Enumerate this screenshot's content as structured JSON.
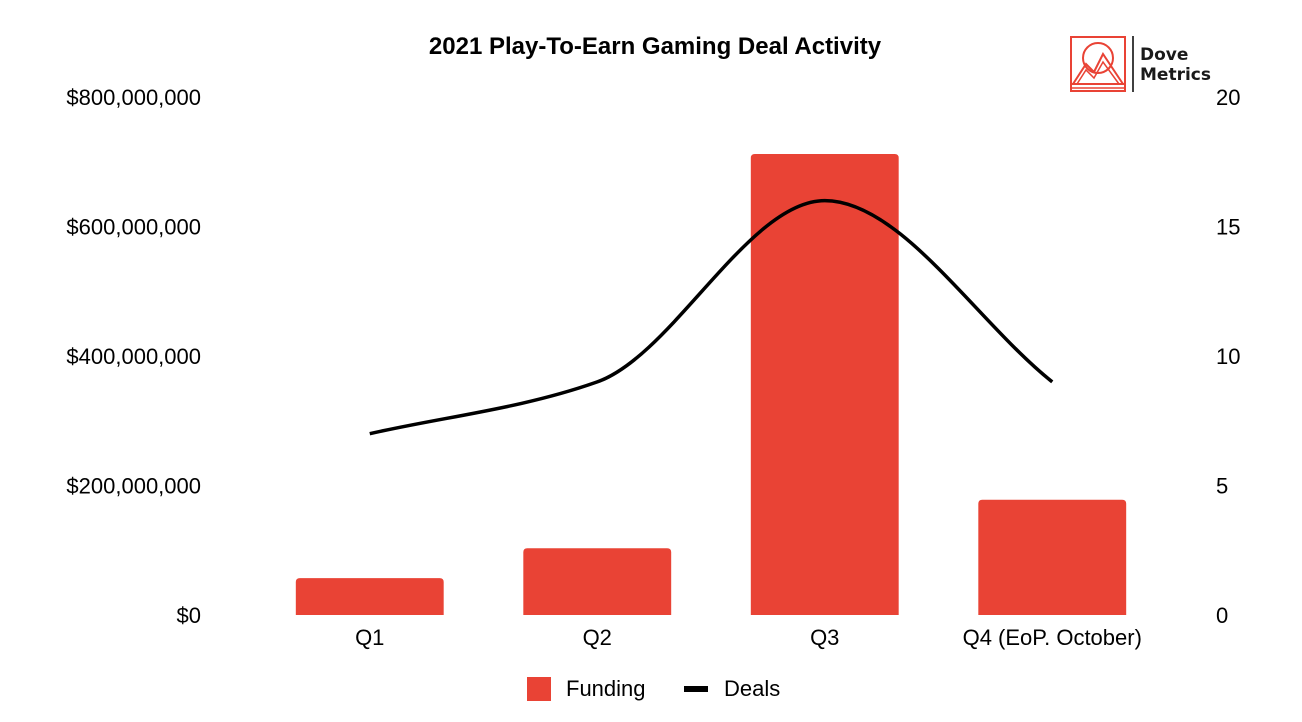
{
  "chart_data": {
    "type": "bar",
    "title": "2021 Play-To-Earn Gaming Deal Activity",
    "categories": [
      "Q1",
      "Q2",
      "Q3",
      "Q4 (EoP. October)"
    ],
    "series": [
      {
        "name": "Funding",
        "type": "bar",
        "axis": "left",
        "color": "#E94335",
        "values": [
          57000000,
          103000000,
          712000000,
          178000000
        ]
      },
      {
        "name": "Deals",
        "type": "line",
        "axis": "right",
        "color": "#000000",
        "smooth": true,
        "values": [
          7,
          9,
          16,
          9
        ]
      }
    ],
    "y_left": {
      "min": 0,
      "max": 800000000,
      "ticks": [
        0,
        200000000,
        400000000,
        600000000,
        800000000
      ],
      "tick_labels": [
        "$0",
        "$200,000,000",
        "$400,000,000",
        "$600,000,000",
        "$800,000,000"
      ]
    },
    "y_right": {
      "min": 0,
      "max": 20,
      "ticks": [
        0,
        5,
        10,
        15,
        20
      ],
      "tick_labels": [
        "0",
        "5",
        "10",
        "15",
        "20"
      ]
    },
    "xlabel": "",
    "ylabel": "",
    "grid": false,
    "legend_position": "bottom"
  },
  "logo": {
    "line1": "Dove",
    "line2": "Metrics",
    "color": "#E94335"
  }
}
